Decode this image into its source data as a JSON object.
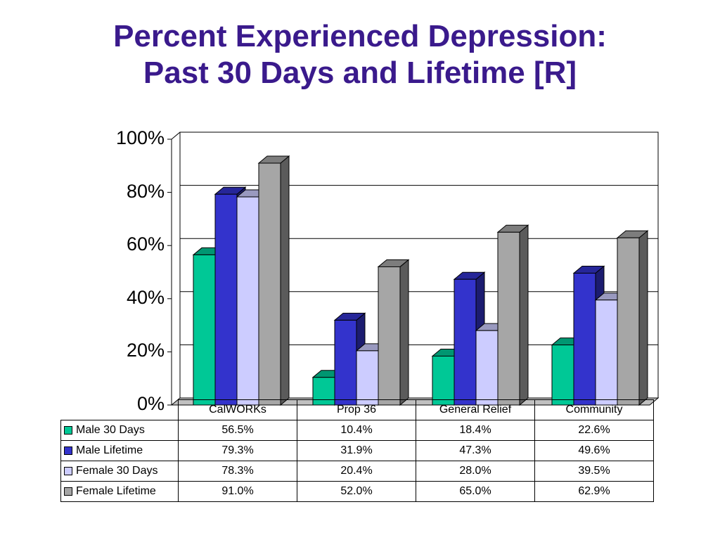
{
  "title_line1": "Percent Experienced Depression:",
  "title_line2": "Past 30 Days and Lifetime [R]",
  "chart_data": {
    "type": "bar",
    "categories": [
      "CalWORKs",
      "Prop 36",
      "General Relief",
      "Community"
    ],
    "series": [
      {
        "name": "Male 30 Days",
        "values": [
          56.5,
          10.4,
          18.4,
          22.6
        ],
        "color": "#00c896"
      },
      {
        "name": "Male Lifetime",
        "values": [
          79.3,
          31.9,
          47.3,
          49.6
        ],
        "color": "#3333cc"
      },
      {
        "name": "Female 30 Days",
        "values": [
          78.3,
          20.4,
          28.0,
          39.5
        ],
        "color": "#ccccff"
      },
      {
        "name": "Female Lifetime",
        "values": [
          91.0,
          52.0,
          65.0,
          62.9
        ],
        "color": "#a6a6a6"
      }
    ],
    "yticks": [
      "0%",
      "20%",
      "40%",
      "60%",
      "80%",
      "100%"
    ],
    "ylim": [
      0,
      100
    ],
    "grid": true,
    "legend": "data table below chart",
    "table": {
      "rows": [
        [
          "56.5%",
          "10.4%",
          "18.4%",
          "22.6%"
        ],
        [
          "79.3%",
          "31.9%",
          "47.3%",
          "49.6%"
        ],
        [
          "78.3%",
          "20.4%",
          "28.0%",
          "39.5%"
        ],
        [
          "91.0%",
          "52.0%",
          "65.0%",
          "62.9%"
        ]
      ]
    }
  }
}
